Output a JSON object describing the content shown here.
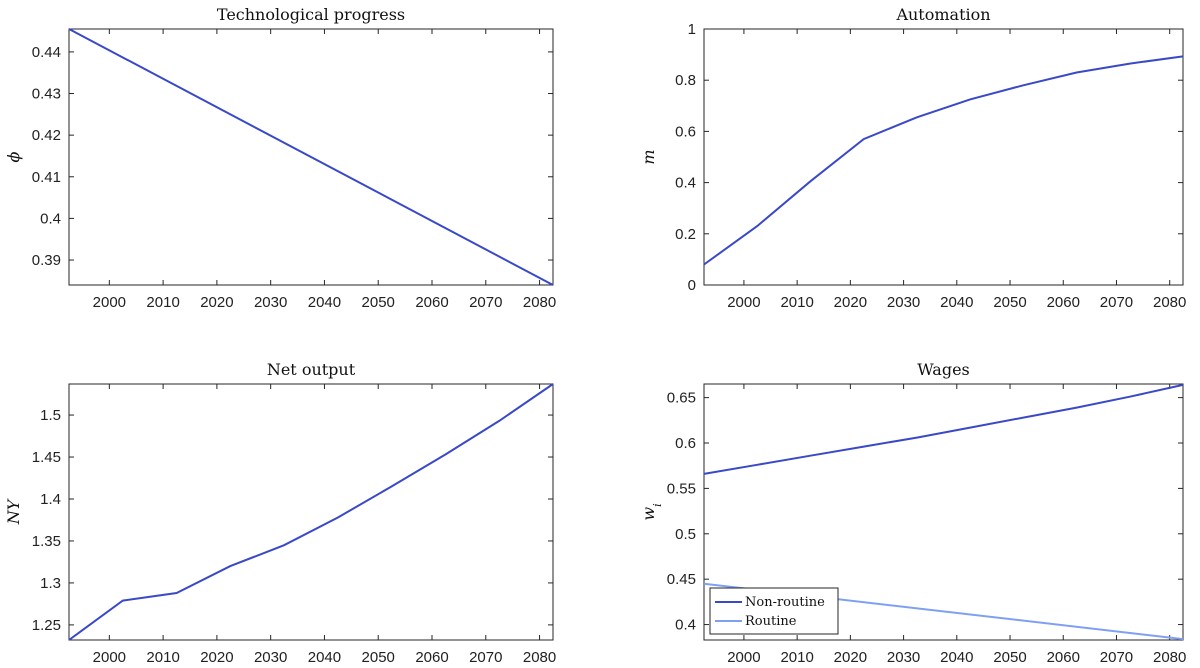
{
  "chart_data": [
    {
      "type": "line",
      "title": "Technological progress",
      "xlabel": "",
      "ylabel": "ϕ",
      "xlim": [
        1992.5,
        2082.5
      ],
      "ylim": [
        0.384,
        0.4455
      ],
      "xticks": [
        2000,
        2010,
        2020,
        2030,
        2040,
        2050,
        2060,
        2070,
        2080
      ],
      "yticks": [
        0.39,
        0.4,
        0.41,
        0.42,
        0.43,
        0.44
      ],
      "ytick_labels": [
        "0.39",
        "0.4",
        "0.41",
        "0.42",
        "0.43",
        "0.44"
      ],
      "series": [
        {
          "color": "#3949c7",
          "x": [
            1992.5,
            2082.5
          ],
          "y": [
            0.4455,
            0.384
          ]
        }
      ]
    },
    {
      "type": "line",
      "title": "Automation",
      "xlabel": "",
      "ylabel": "m",
      "xlim": [
        1992.5,
        2082.5
      ],
      "ylim": [
        0,
        1
      ],
      "xticks": [
        2000,
        2010,
        2020,
        2030,
        2040,
        2050,
        2060,
        2070,
        2080
      ],
      "yticks": [
        0,
        0.2,
        0.4,
        0.6,
        0.8,
        1
      ],
      "ytick_labels": [
        "0",
        "0.2",
        "0.4",
        "0.6",
        "0.8",
        "1"
      ],
      "series": [
        {
          "color": "#3949c7",
          "x": [
            1992.5,
            2002.5,
            2012.5,
            2022.5,
            2032.5,
            2042.5,
            2052.5,
            2062.5,
            2072.5,
            2082.5
          ],
          "y": [
            0.08,
            0.23,
            0.405,
            0.57,
            0.655,
            0.725,
            0.78,
            0.83,
            0.865,
            0.893
          ]
        }
      ]
    },
    {
      "type": "line",
      "title": "Net output",
      "xlabel": "",
      "ylabel": "NY",
      "xlim": [
        1992.5,
        2082.5
      ],
      "ylim": [
        1.232,
        1.537
      ],
      "xticks": [
        2000,
        2010,
        2020,
        2030,
        2040,
        2050,
        2060,
        2070,
        2080
      ],
      "yticks": [
        1.25,
        1.3,
        1.35,
        1.4,
        1.45,
        1.5
      ],
      "ytick_labels": [
        "1.25",
        "1.3",
        "1.35",
        "1.4",
        "1.45",
        "1.5"
      ],
      "series": [
        {
          "color": "#3949c7",
          "x": [
            1992.5,
            2002.5,
            2012.5,
            2022.5,
            2032.5,
            2042.5,
            2052.5,
            2062.5,
            2072.5,
            2082.5
          ],
          "y": [
            1.232,
            1.279,
            1.288,
            1.32,
            1.345,
            1.378,
            1.415,
            1.453,
            1.493,
            1.537
          ]
        }
      ]
    },
    {
      "type": "line",
      "title": "Wages",
      "xlabel": "",
      "ylabel": "w_i",
      "xlim": [
        1992.5,
        2082.5
      ],
      "ylim": [
        0.383,
        0.665
      ],
      "xticks": [
        2000,
        2010,
        2020,
        2030,
        2040,
        2050,
        2060,
        2070,
        2080
      ],
      "yticks": [
        0.4,
        0.45,
        0.5,
        0.55,
        0.6,
        0.65
      ],
      "ytick_labels": [
        "0.4",
        "0.45",
        "0.5",
        "0.55",
        "0.6",
        "0.65"
      ],
      "legend": {
        "placement": "bottom-left",
        "entries": [
          "Non-routine",
          "Routine"
        ]
      },
      "series": [
        {
          "name": "Non-routine",
          "color": "#3949c7",
          "x": [
            1992.5,
            2002.5,
            2012.5,
            2022.5,
            2032.5,
            2042.5,
            2052.5,
            2062.5,
            2072.5,
            2082.5
          ],
          "y": [
            0.566,
            0.576,
            0.586,
            0.596,
            0.606,
            0.617,
            0.628,
            0.639,
            0.651,
            0.664
          ]
        },
        {
          "name": "Routine",
          "color": "#7fa0f2",
          "x": [
            1992.5,
            2082.5
          ],
          "y": [
            0.445,
            0.384
          ]
        }
      ]
    }
  ]
}
